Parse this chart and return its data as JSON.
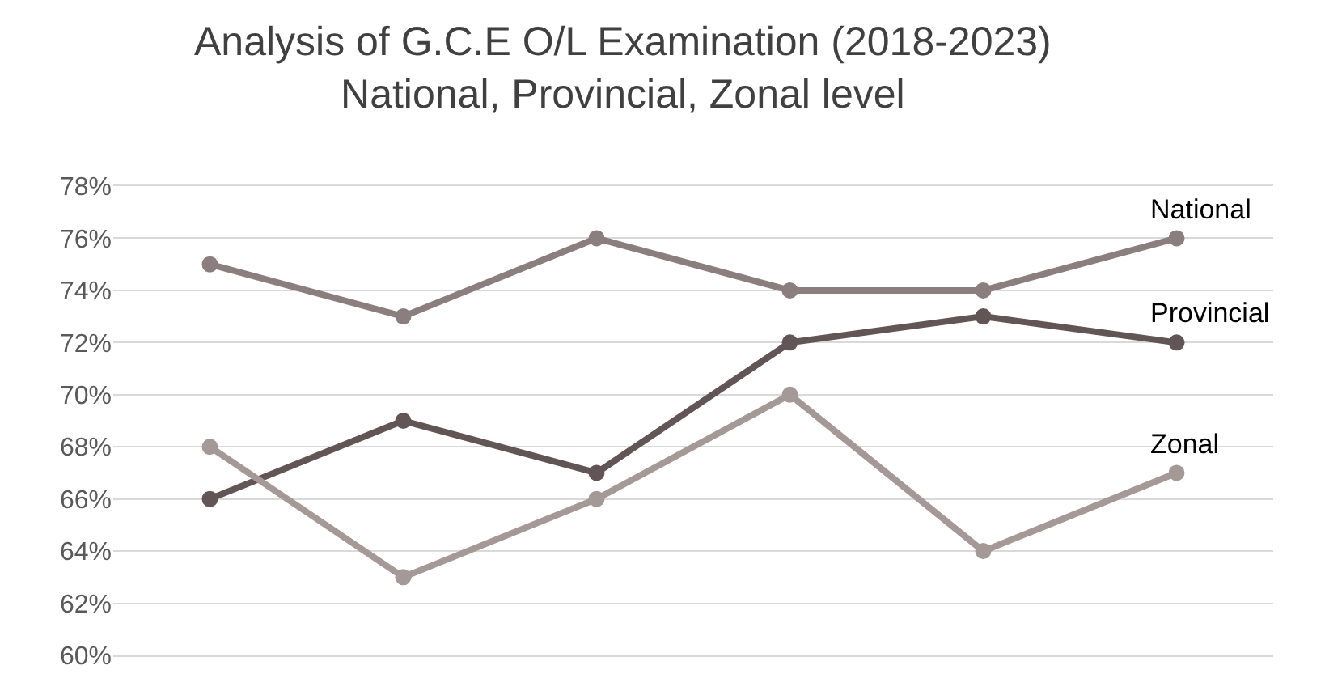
{
  "chart_data": {
    "type": "line",
    "title": "Analysis of G.C.E O/L Examination (2018-2023)",
    "subtitle": "National, Provincial, Zonal level",
    "categories": [
      null,
      null,
      null,
      null,
      null,
      null
    ],
    "series": [
      {
        "name": "National",
        "color": "#8b7e7e",
        "values": [
          75,
          73,
          76,
          74,
          74,
          76
        ]
      },
      {
        "name": "Provincial",
        "color": "#625555",
        "values": [
          66,
          69,
          67,
          72,
          73,
          72
        ]
      },
      {
        "name": "Zonal",
        "color": "#a59997",
        "values": [
          68,
          63,
          66,
          70,
          64,
          67
        ]
      }
    ],
    "ylim": [
      60,
      78
    ],
    "yticks": [
      {
        "value": 60,
        "label": "60%"
      },
      {
        "value": 62,
        "label": "62%"
      },
      {
        "value": 64,
        "label": "64%"
      },
      {
        "value": 66,
        "label": "66%"
      },
      {
        "value": 68,
        "label": "68%"
      },
      {
        "value": 70,
        "label": "70%"
      },
      {
        "value": 72,
        "label": "72%"
      },
      {
        "value": 74,
        "label": "74%"
      },
      {
        "value": 76,
        "label": "76%"
      },
      {
        "value": 78,
        "label": "78%"
      }
    ],
    "grid": "y",
    "legend": false,
    "marker": "circle",
    "line_style": "solid"
  }
}
